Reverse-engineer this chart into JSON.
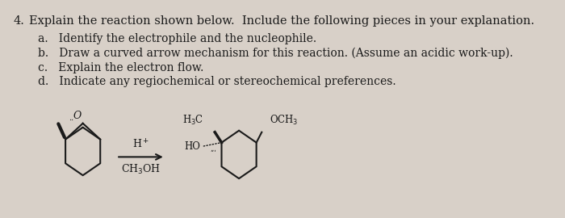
{
  "background_color": "#d8d0c8",
  "title_number": "4.",
  "title_text": "Explain the reaction shown below.  Include the following pieces in your explanation.",
  "items": [
    "a.   Identify the electrophile and the nucleophile.",
    "b.   Draw a curved arrow mechanism for this reaction. (Assume an acidic work-up).",
    "c.   Explain the electron flow.",
    "d.   Indicate any regiochemical or stereochemical preferences."
  ],
  "font_size_title": 10.5,
  "font_size_items": 10.0,
  "font_size_chem": 9.5,
  "text_color": "#1a1a1a"
}
